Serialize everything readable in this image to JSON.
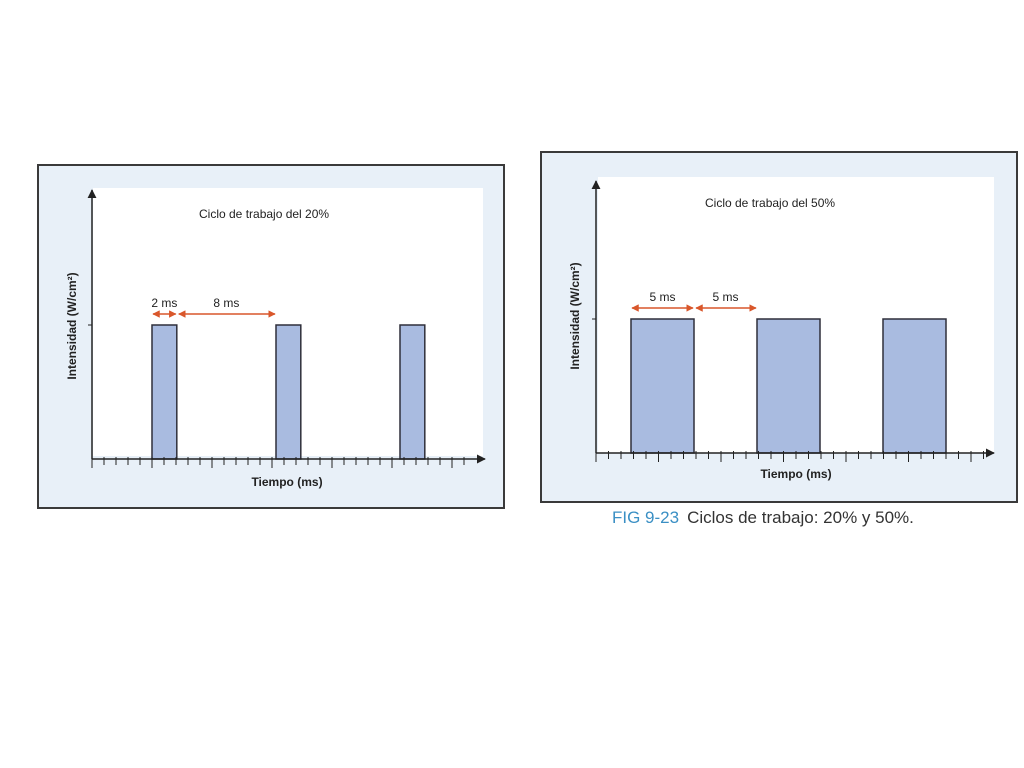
{
  "colors": {
    "bar_fill": "#a9bbe0",
    "bar_stroke": "#2f2f3a",
    "arrow": "#d9572b",
    "axis": "#222222",
    "panel_bg": "#e8f0f8",
    "caption_accent": "#3a8fc4"
  },
  "chart_data": [
    {
      "type": "bar",
      "title": "Ciclo de trabajo del 20%",
      "xlabel": "Tiempo (ms)",
      "ylabel": "Intensidad (W/cm²)",
      "on_ms": 2,
      "off_ms": 8,
      "pulses": 3,
      "on_label": "2 ms",
      "off_label": "8 ms",
      "duty_cycle_percent": 20
    },
    {
      "type": "bar",
      "title": "Ciclo de trabajo del 50%",
      "xlabel": "Tiempo (ms)",
      "ylabel": "Intensidad (W/cm²)",
      "on_ms": 5,
      "off_ms": 5,
      "pulses": 3,
      "on_label": "5 ms",
      "off_label": "5 ms",
      "duty_cycle_percent": 50
    }
  ],
  "caption": {
    "fig_number": "FIG 9-23",
    "text": "Ciclos de trabajo: 20% y 50%."
  }
}
